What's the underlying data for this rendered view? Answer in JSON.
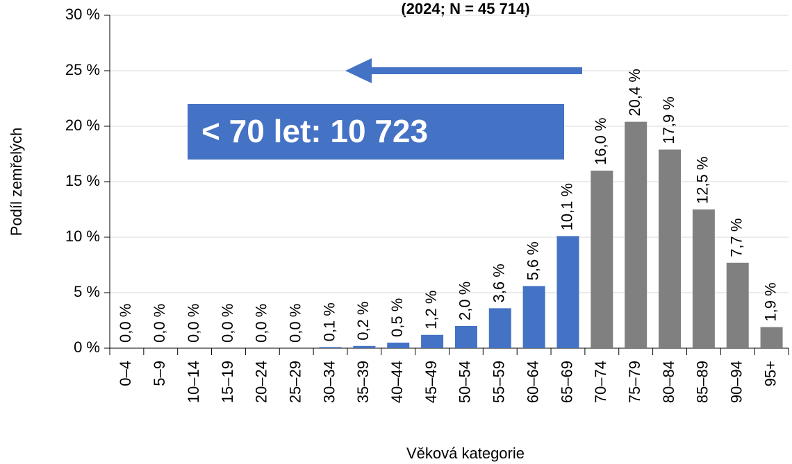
{
  "chart_data": {
    "type": "bar",
    "subtitle": "(2024; N = 45 714)",
    "x_label": "Věková kategorie",
    "y_label": "Podíl zemřelých",
    "annotation": "< 70 let: 10 723",
    "categories": [
      "0–4",
      "5–9",
      "10–14",
      "15–19",
      "20–24",
      "25–29",
      "30–34",
      "35–39",
      "40–44",
      "45–49",
      "50–54",
      "55–59",
      "60–64",
      "65–69",
      "70–74",
      "75–79",
      "80–84",
      "85–89",
      "90–94",
      "95+"
    ],
    "values": [
      0,
      0,
      0,
      0,
      0,
      0,
      0.1,
      0.2,
      0.5,
      1.2,
      2.0,
      3.6,
      5.6,
      10.1,
      16.0,
      20.4,
      17.9,
      12.5,
      7.7,
      1.9
    ],
    "value_labels": [
      "0,0 %",
      "0,0 %",
      "0,0 %",
      "0,0 %",
      "0,0 %",
      "0,0 %",
      "0,1 %",
      "0,2 %",
      "0,5 %",
      "1,2 %",
      "2,0 %",
      "3,6 %",
      "5,6 %",
      "10,1 %",
      "16,0 %",
      "20,4 %",
      "17,9 %",
      "12,5 %",
      "7,7 %",
      "1,9 %"
    ],
    "colors": [
      "#4472c4",
      "#4472c4",
      "#4472c4",
      "#4472c4",
      "#4472c4",
      "#4472c4",
      "#4472c4",
      "#4472c4",
      "#4472c4",
      "#4472c4",
      "#4472c4",
      "#4472c4",
      "#4472c4",
      "#4472c4",
      "#808080",
      "#808080",
      "#808080",
      "#808080",
      "#808080",
      "#808080"
    ],
    "ylim": [
      0,
      30
    ],
    "yticks": [
      {
        "value": 0,
        "label": "0 %"
      },
      {
        "value": 5,
        "label": "5 %"
      },
      {
        "value": 10,
        "label": "10 %"
      },
      {
        "value": 15,
        "label": "15 %"
      },
      {
        "value": 20,
        "label": "20 %"
      },
      {
        "value": 25,
        "label": "25 %"
      },
      {
        "value": 30,
        "label": "30 %"
      }
    ],
    "grid": true
  }
}
